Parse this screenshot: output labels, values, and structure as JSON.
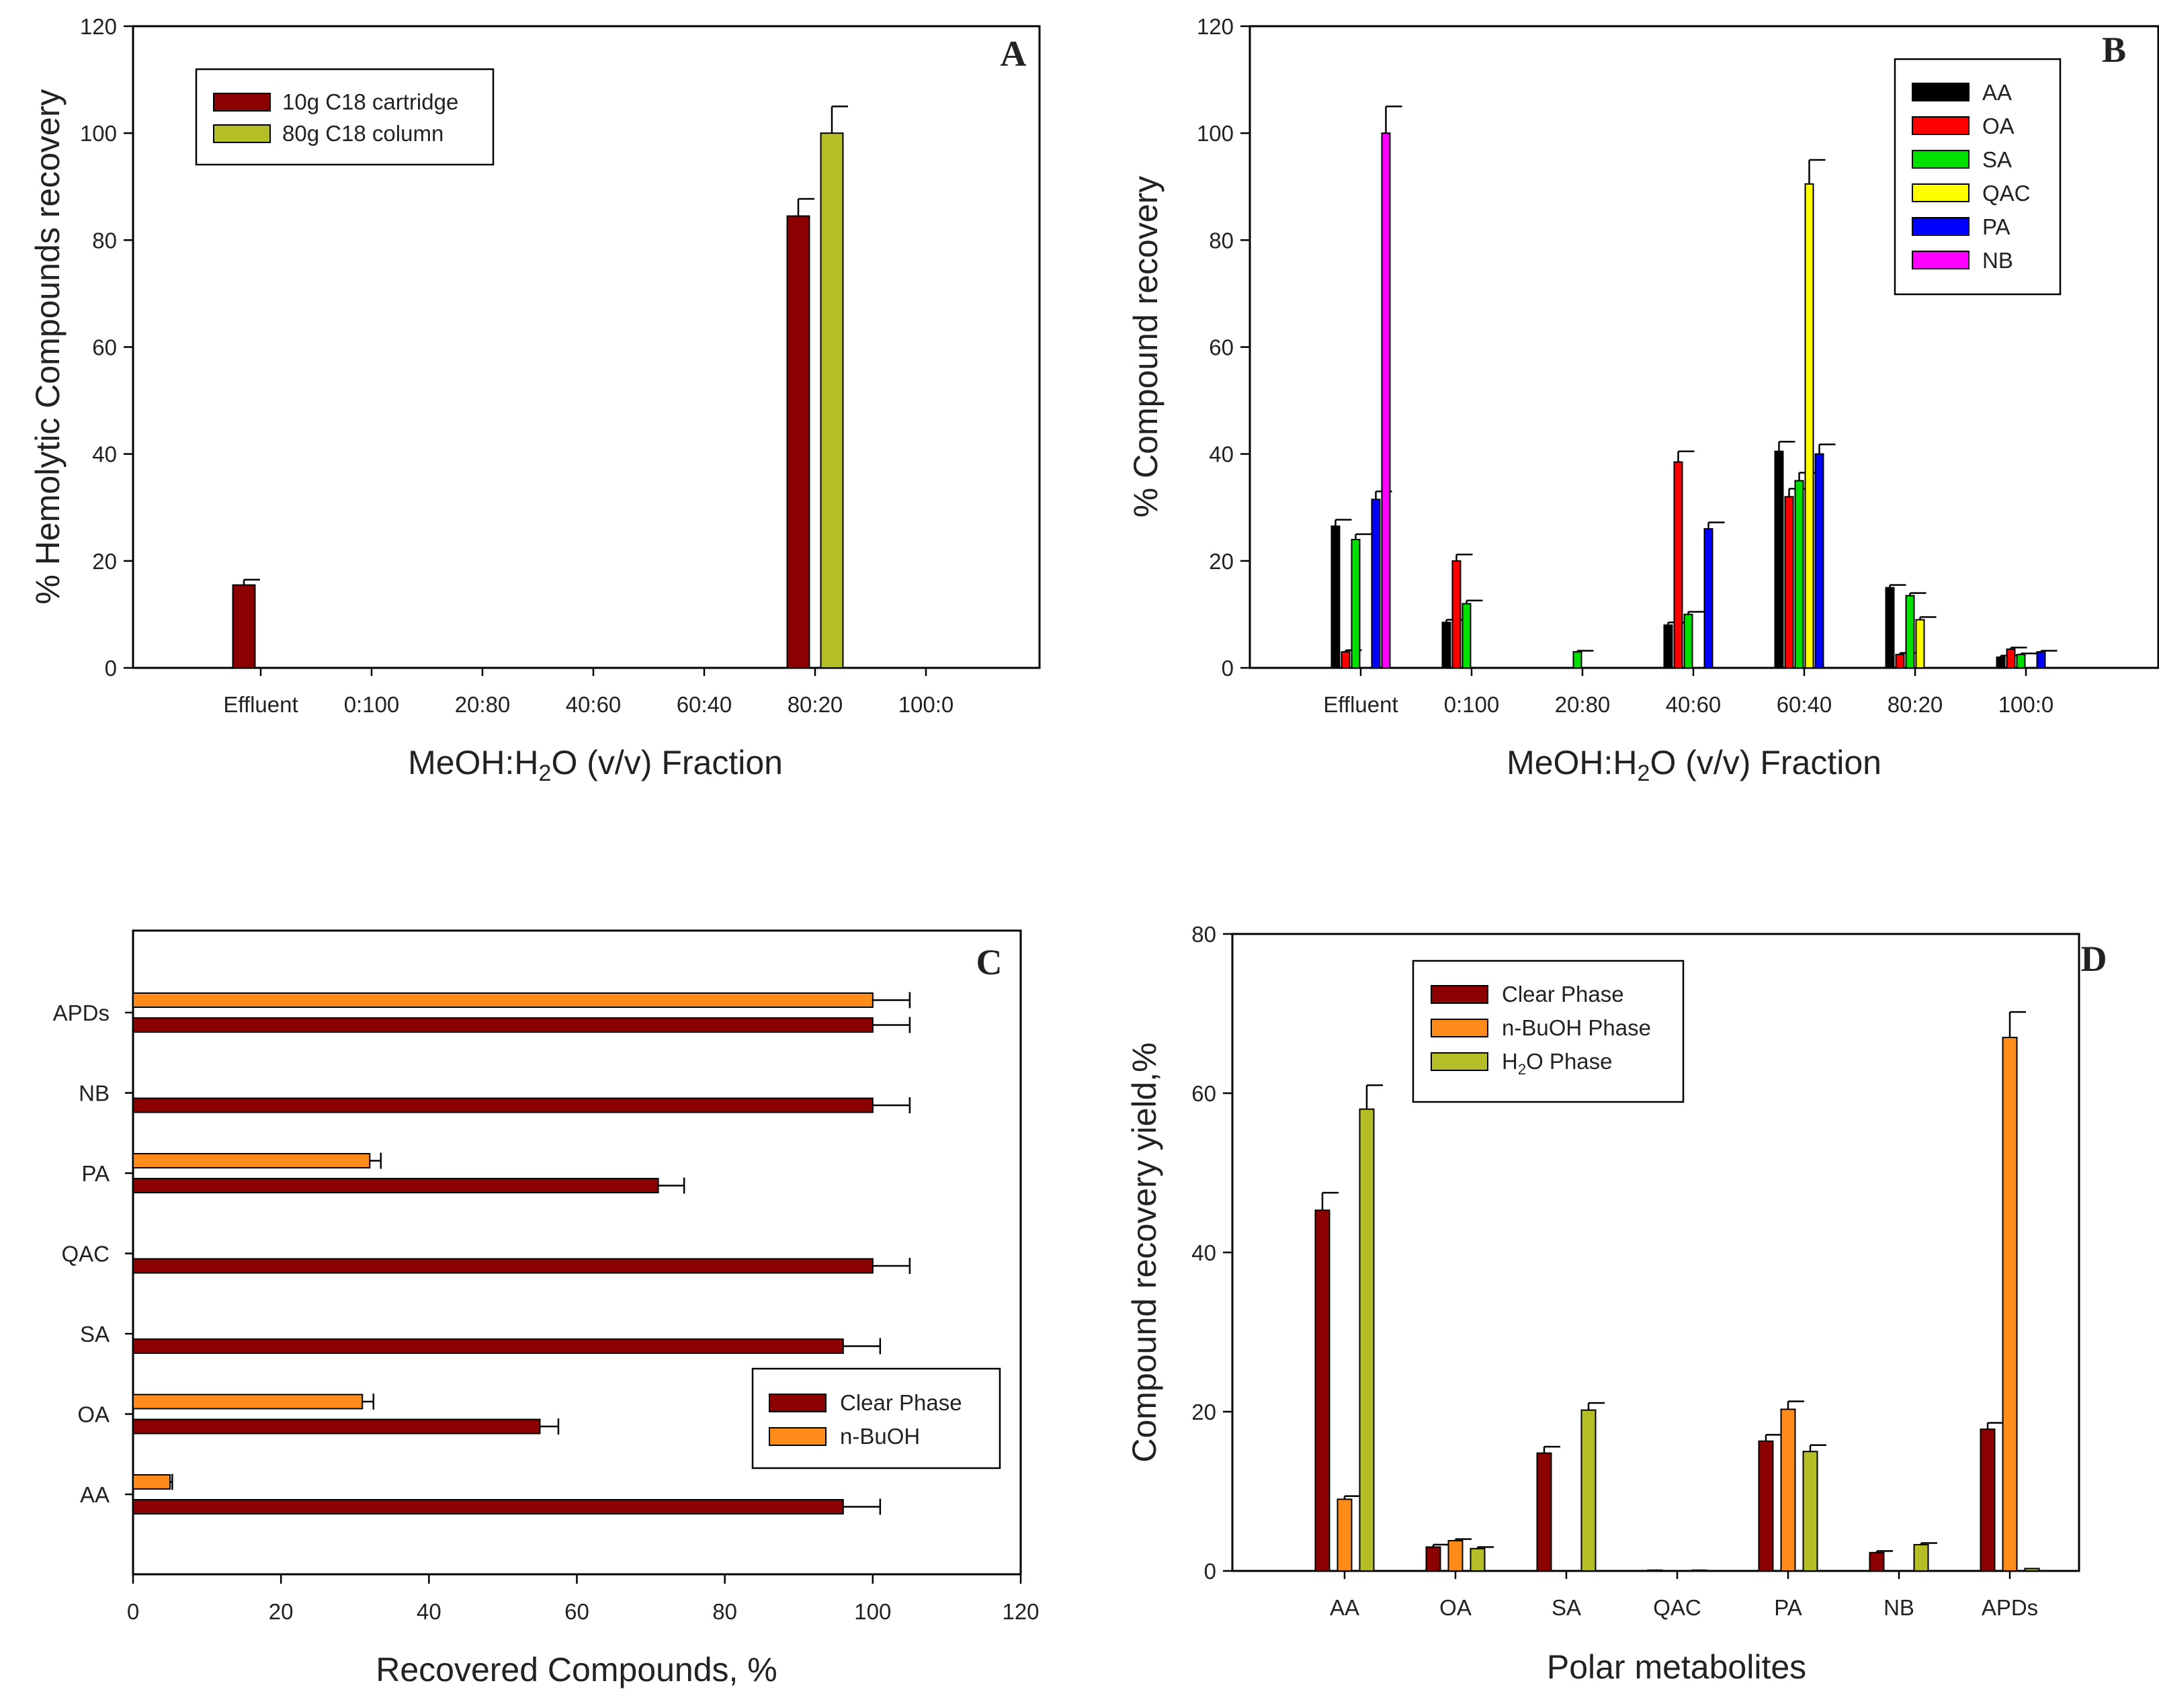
{
  "chart_data": [
    {
      "panel": "A",
      "type": "bar",
      "orientation": "vertical",
      "xlabel": "MeOH:H2O (v/v) Fraction",
      "ylabel": "% Hemolytic Compounds recovery",
      "ylim": [
        0,
        120
      ],
      "yticks": [
        "0",
        "20",
        "40",
        "60",
        "80",
        "100",
        "120"
      ],
      "categories": [
        "Effluent",
        "0:100",
        "20:80",
        "40:60",
        "60:40",
        "80:20",
        "100:0"
      ],
      "legend_position": "top-left",
      "series": [
        {
          "name": "10g C18 cartridge",
          "color": "#8b0000",
          "values": [
            15.5,
            null,
            null,
            null,
            null,
            84.5,
            null
          ],
          "errors": [
            1,
            null,
            null,
            null,
            null,
            3.2,
            null
          ]
        },
        {
          "name": "80g C18 column",
          "color": "#b5bd27",
          "values": [
            null,
            null,
            null,
            null,
            null,
            100,
            null
          ],
          "errors": [
            null,
            null,
            null,
            null,
            null,
            5,
            null
          ]
        }
      ]
    },
    {
      "panel": "B",
      "type": "bar",
      "orientation": "vertical",
      "xlabel": "MeOH:H2O (v/v) Fraction",
      "ylabel": "% Compound recovery",
      "ylim": [
        0,
        120
      ],
      "yticks": [
        "0",
        "20",
        "40",
        "60",
        "80",
        "100",
        "120"
      ],
      "categories": [
        "Effluent",
        "0:100",
        "20:80",
        "40:60",
        "60:40",
        "80:20",
        "100:0"
      ],
      "legend_position": "top-right",
      "series": [
        {
          "name": "AA",
          "color": "#000000",
          "values": [
            26.5,
            8.5,
            null,
            8,
            40.5,
            15,
            2
          ],
          "errors": [
            1.2,
            0.5,
            null,
            0.5,
            1.8,
            0.5,
            0.3
          ]
        },
        {
          "name": "OA",
          "color": "#ff0000",
          "values": [
            3,
            20,
            null,
            38.5,
            32,
            2.5,
            3.5
          ],
          "errors": [
            0.3,
            1.2,
            null,
            2,
            1.5,
            0.3,
            0.3
          ]
        },
        {
          "name": "SA",
          "color": "#00e000",
          "values": [
            24,
            12,
            3,
            10,
            35,
            13.5,
            2.5
          ],
          "errors": [
            1,
            0.6,
            0.2,
            0.5,
            1.5,
            0.5,
            0.2
          ]
        },
        {
          "name": "QAC",
          "color": "#ffff00",
          "values": [
            null,
            null,
            null,
            null,
            90.5,
            9,
            null
          ],
          "errors": [
            null,
            null,
            null,
            null,
            4.5,
            0.5,
            null
          ]
        },
        {
          "name": "PA",
          "color": "#0000ff",
          "values": [
            31.5,
            null,
            null,
            26,
            40,
            null,
            3
          ],
          "errors": [
            1.5,
            null,
            null,
            1.2,
            1.8,
            null,
            0.2
          ]
        },
        {
          "name": "NB",
          "color": "#ff00ff",
          "values": [
            100,
            null,
            null,
            null,
            null,
            null,
            null
          ],
          "errors": [
            5,
            null,
            null,
            null,
            null,
            null,
            null
          ]
        }
      ]
    },
    {
      "panel": "C",
      "type": "bar",
      "orientation": "horizontal",
      "xlabel": "Recovered Compounds, %",
      "ylabel": "",
      "xlim": [
        0,
        120
      ],
      "xticks": [
        "0",
        "20",
        "40",
        "60",
        "80",
        "100",
        "120"
      ],
      "categories": [
        "AA",
        "OA",
        "SA",
        "QAC",
        "PA",
        "NB",
        "APDs"
      ],
      "legend_position": "bottom-right",
      "series": [
        {
          "name": "Clear Phase",
          "color": "#8b0000",
          "values": [
            96,
            55,
            96,
            100,
            71,
            100,
            100
          ],
          "errors": [
            5,
            2.5,
            5,
            5,
            3.5,
            5,
            5
          ]
        },
        {
          "name": "n-BuOH",
          "color": "#ff8c1a",
          "values": [
            5,
            31,
            null,
            null,
            32,
            null,
            100
          ],
          "errors": [
            0.3,
            1.5,
            null,
            null,
            1.5,
            null,
            5
          ]
        }
      ]
    },
    {
      "panel": "D",
      "type": "bar",
      "orientation": "vertical",
      "xlabel": "Polar metabolites",
      "ylabel": "Compound recovery yield,%",
      "ylim": [
        0,
        80
      ],
      "yticks": [
        "0",
        "20",
        "40",
        "60",
        "80"
      ],
      "categories": [
        "AA",
        "OA",
        "SA",
        "QAC",
        "PA",
        "NB",
        "APDs"
      ],
      "legend_position": "top-left",
      "series": [
        {
          "name": "Clear Phase",
          "color": "#8b0000",
          "values": [
            45.3,
            3,
            14.8,
            0.1,
            16.3,
            2.3,
            17.8
          ],
          "errors": [
            2.2,
            0.3,
            0.8,
            0,
            0.8,
            0.2,
            0.8
          ]
        },
        {
          "name": "n-BuOH Phase",
          "color": "#ff8c1a",
          "values": [
            9,
            3.8,
            null,
            null,
            20.3,
            null,
            67
          ],
          "errors": [
            0.4,
            0.2,
            null,
            null,
            1,
            null,
            3.2
          ]
        },
        {
          "name": "H2O Phase",
          "color": "#b5bd27",
          "values": [
            58,
            2.8,
            20.2,
            0.1,
            15,
            3.3,
            0.3
          ],
          "errors": [
            3,
            0.2,
            0.9,
            0,
            0.8,
            0.2,
            0
          ]
        }
      ]
    }
  ],
  "panel_labels": [
    "A",
    "B",
    "C",
    "D"
  ],
  "xlabel_ab_prefix": "MeOH:H",
  "xlabel_ab_sub": "2",
  "xlabel_ab_suffix": "O (v/v) Fraction",
  "d_legend_h2o_prefix": "H",
  "d_legend_h2o_sub": "2",
  "d_legend_h2o_suffix": "O Phase"
}
